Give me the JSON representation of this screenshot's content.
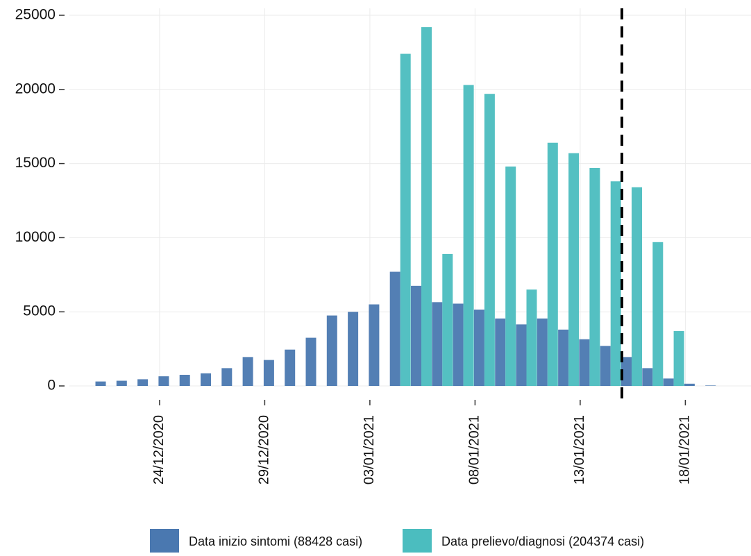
{
  "chart_data": {
    "type": "bar",
    "categories": [
      null,
      null,
      null,
      "24/12/2020",
      null,
      null,
      null,
      null,
      "29/12/2020",
      null,
      null,
      null,
      null,
      "03/01/2021",
      null,
      null,
      null,
      null,
      "08/01/2021",
      null,
      null,
      null,
      null,
      "13/01/2021",
      null,
      null,
      null,
      null,
      "18/01/2021",
      null
    ],
    "series": [
      {
        "name": "Data inizio sintomi (88428 casi)",
        "color": "#4a78b0",
        "values": [
          300,
          350,
          450,
          650,
          750,
          850,
          1200,
          1950,
          1750,
          2450,
          3250,
          4750,
          5000,
          5500,
          7700,
          6750,
          5650,
          5550,
          5150,
          4550,
          4150,
          4550,
          3800,
          3150,
          2700,
          1950,
          1200,
          500,
          150,
          30
        ]
      },
      {
        "name": "Data prelievo/diagnosi (204374 casi)",
        "color": "#4bbdbf",
        "values": [
          null,
          null,
          null,
          null,
          null,
          null,
          null,
          null,
          null,
          null,
          null,
          null,
          null,
          null,
          22400,
          24200,
          8900,
          20300,
          19700,
          14800,
          6500,
          16400,
          15700,
          14700,
          13800,
          13400,
          9700,
          3700,
          null,
          null
        ]
      }
    ],
    "ylim": [
      0,
      25000
    ],
    "yticks": [
      0,
      5000,
      10000,
      15000,
      20000,
      25000
    ],
    "grid": true
  }
}
